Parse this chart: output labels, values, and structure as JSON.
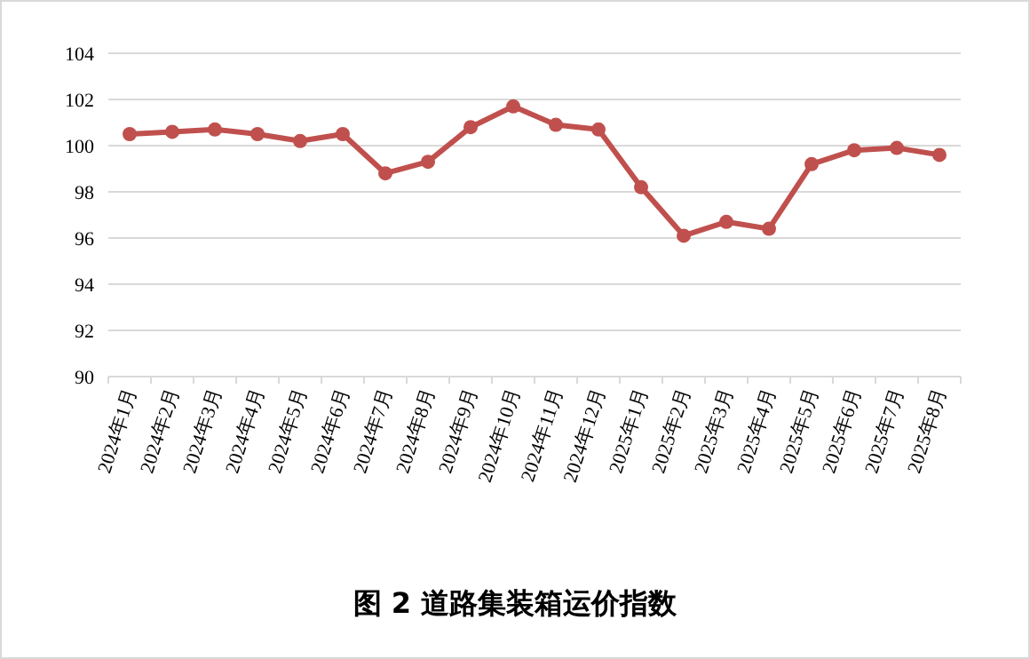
{
  "chart_data": {
    "type": "line",
    "title": "图 2 道路集装箱运价指数",
    "categories": [
      "2024年1月",
      "2024年2月",
      "2024年3月",
      "2024年4月",
      "2024年5月",
      "2024年6月",
      "2024年7月",
      "2024年8月",
      "2024年9月",
      "2024年10月",
      "2024年11月",
      "2024年12月",
      "2025年1月",
      "2025年2月",
      "2025年3月",
      "2025年4月",
      "2025年5月",
      "2025年6月",
      "2025年7月",
      "2025年8月"
    ],
    "series": [
      {
        "color": "#c0504d",
        "values": [
          100.5,
          100.6,
          100.7,
          100.5,
          100.2,
          100.5,
          98.8,
          99.3,
          100.8,
          101.7,
          100.9,
          100.7,
          98.2,
          96.1,
          96.7,
          96.4,
          99.2,
          99.8,
          99.9,
          99.6
        ]
      }
    ],
    "ylim": [
      90,
      104
    ],
    "yticks": [
      90,
      92,
      94,
      96,
      98,
      100,
      102,
      104
    ],
    "grid": "y",
    "marker": "circle",
    "line_style": "solid"
  }
}
